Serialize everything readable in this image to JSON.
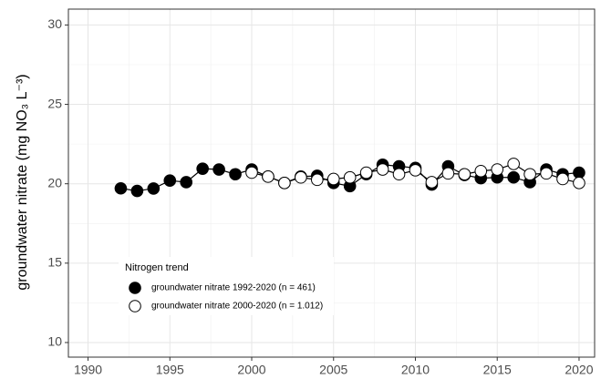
{
  "chart_data": {
    "type": "line",
    "y_label": "groundwater nitrate (mg NO₃ L⁻³)",
    "legend_title": "Nitrogen trend",
    "legend_position": "bottom-left",
    "x": [
      1992,
      1993,
      1994,
      1995,
      1996,
      1997,
      1998,
      1999,
      2000,
      2001,
      2002,
      2003,
      2004,
      2005,
      2006,
      2007,
      2008,
      2009,
      2010,
      2011,
      2012,
      2013,
      2014,
      2015,
      2016,
      2017,
      2018,
      2019,
      2020
    ],
    "series": [
      {
        "name": "groundwater nitrate 1992-2020 (n = 461)",
        "color": "#000000",
        "marker_fill": "#000000",
        "values": [
          19.71,
          19.55,
          19.7,
          20.2,
          20.1,
          20.95,
          20.9,
          20.6,
          20.9,
          20.45,
          20.05,
          20.45,
          20.5,
          20.05,
          19.85,
          20.6,
          21.2,
          21.1,
          21.0,
          19.95,
          21.1,
          20.55,
          20.35,
          20.4,
          20.4,
          20.1,
          20.9,
          20.6,
          20.7
        ]
      },
      {
        "name": "groundwater nitrate 2000-2020 (n = 1.012)",
        "color": "#000000",
        "marker_fill": "#ffffff",
        "values": [
          null,
          null,
          null,
          null,
          null,
          null,
          null,
          null,
          20.7,
          20.45,
          20.05,
          20.4,
          20.25,
          20.3,
          20.4,
          20.7,
          20.9,
          20.6,
          20.85,
          20.1,
          20.65,
          20.6,
          20.8,
          20.9,
          21.25,
          20.6,
          20.65,
          20.3,
          20.05
        ]
      }
    ],
    "xlim": [
      1988.8,
      2020.95
    ],
    "xticks": [
      1990,
      1995,
      2000,
      2005,
      2010,
      2015,
      2020
    ],
    "ylim": [
      9.08,
      31.0
    ],
    "yticks": [
      10,
      15,
      20,
      25,
      30
    ],
    "grid": true,
    "minor_grid": true
  }
}
